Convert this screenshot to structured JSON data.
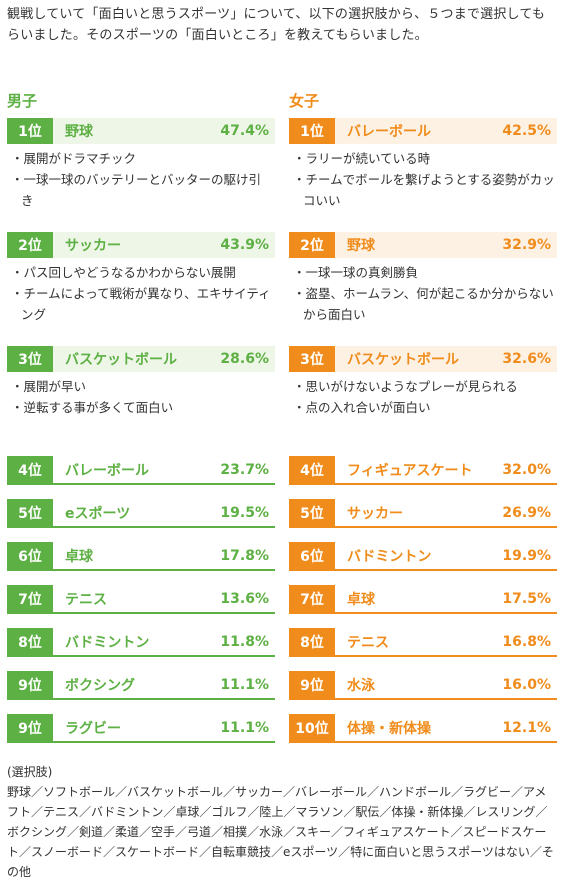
{
  "intro": "観戦していて「面白いと思うスポーツ」について、以下の選択肢から、５つまで選択してもらいました。そのスポーツの「面白いところ」を教えてもらいました。",
  "chart_data": [
    {
      "type": "table",
      "group": "男子",
      "top": [
        {
          "rank": "1位",
          "sport": "野球",
          "pct": "47.4%",
          "value": 47.4,
          "comments": [
            "・展開がドラマチック",
            "・一球一球のバッテリーとバッターの駆け引き"
          ]
        },
        {
          "rank": "2位",
          "sport": "サッカー",
          "pct": "43.9%",
          "value": 43.9,
          "comments": [
            "・パス回しやどうなるかわからない展開",
            "・チームによって戦術が異なり、エキサイティング"
          ]
        },
        {
          "rank": "3位",
          "sport": "バスケットボール",
          "pct": "28.6%",
          "value": 28.6,
          "comments": [
            "・展開が早い",
            "・逆転する事が多くて面白い"
          ]
        }
      ],
      "rest": [
        {
          "rank": "4位",
          "sport": "バレーボール",
          "pct": "23.7%",
          "value": 23.7
        },
        {
          "rank": "5位",
          "sport": "eスポーツ",
          "pct": "19.5%",
          "value": 19.5
        },
        {
          "rank": "6位",
          "sport": "卓球",
          "pct": "17.8%",
          "value": 17.8
        },
        {
          "rank": "7位",
          "sport": "テニス",
          "pct": "13.6%",
          "value": 13.6
        },
        {
          "rank": "8位",
          "sport": "バドミントン",
          "pct": "11.8%",
          "value": 11.8
        },
        {
          "rank": "9位",
          "sport": "ボクシング",
          "pct": "11.1%",
          "value": 11.1
        },
        {
          "rank": "9位",
          "sport": "ラグビー",
          "pct": "11.1%",
          "value": 11.1
        }
      ]
    },
    {
      "type": "table",
      "group": "女子",
      "top": [
        {
          "rank": "1位",
          "sport": "バレーボール",
          "pct": "42.5%",
          "value": 42.5,
          "comments": [
            "・ラリーが続いている時",
            "・チームでボールを繋げようとする姿勢がカッコいい"
          ]
        },
        {
          "rank": "2位",
          "sport": "野球",
          "pct": "32.9%",
          "value": 32.9,
          "comments": [
            "・一球一球の真剣勝負",
            "・盗塁、ホームラン、何が起こるか分からないから面白い"
          ]
        },
        {
          "rank": "3位",
          "sport": "バスケットボール",
          "pct": "32.6%",
          "value": 32.6,
          "comments": [
            "・思いがけないようなプレーが見られる",
            "・点の入れ合いが面白い"
          ]
        }
      ],
      "rest": [
        {
          "rank": "4位",
          "sport": "フィギュアスケート",
          "pct": "32.0%",
          "value": 32.0
        },
        {
          "rank": "5位",
          "sport": "サッカー",
          "pct": "26.9%",
          "value": 26.9
        },
        {
          "rank": "6位",
          "sport": "バドミントン",
          "pct": "19.9%",
          "value": 19.9
        },
        {
          "rank": "7位",
          "sport": "卓球",
          "pct": "17.5%",
          "value": 17.5
        },
        {
          "rank": "8位",
          "sport": "テニス",
          "pct": "16.8%",
          "value": 16.8
        },
        {
          "rank": "9位",
          "sport": "水泳",
          "pct": "16.0%",
          "value": 16.0
        },
        {
          "rank": "10位",
          "sport": "体操・新体操",
          "pct": "12.1%",
          "value": 12.1
        }
      ]
    }
  ],
  "choices_label": "(選択肢)",
  "choices_text": "野球／ソフトボール／バスケットボール／サッカー／バレーボール／ハンドボール／ラグビー／アメフト／テニス／バドミントン／卓球／ゴルフ／陸上／マラソン／駅伝／体操・新体操／レスリング／ボクシング／剣道／柔道／空手／弓道／相撲／水泳／スキー／フィギュアスケート／スピードスケート／スノーボード／スケートボード／自転車競技／eスポーツ／特に面白いと思うスポーツはない／その他",
  "colors": {
    "male": "#5db043",
    "female": "#f08c1c"
  }
}
